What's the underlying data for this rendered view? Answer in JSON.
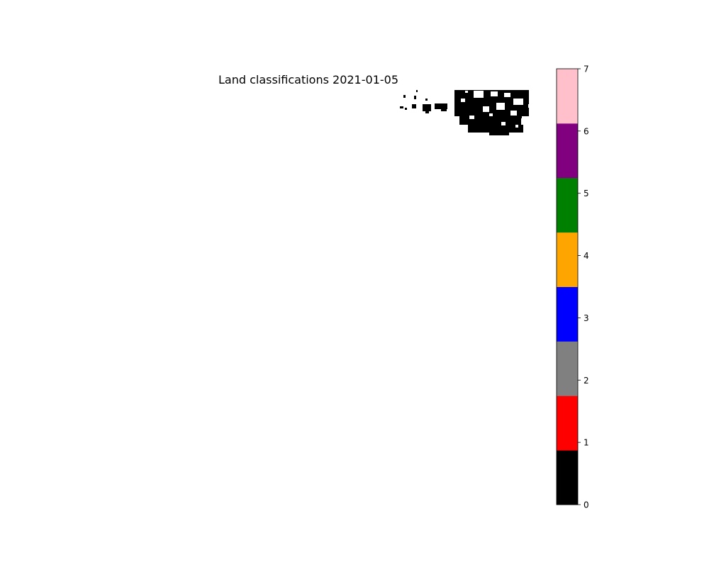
{
  "chart_data": {
    "type": "heatmap",
    "title": "Land classifications 2021-01-05",
    "xlabel": "",
    "ylabel": "",
    "axes_visible": false,
    "colorbar": {
      "orientation": "vertical",
      "placement": "right",
      "range": [
        0,
        7
      ],
      "ticks": [
        "0",
        "1",
        "2",
        "3",
        "4",
        "5",
        "6",
        "7"
      ],
      "classes": [
        {
          "value": 0,
          "color": "#000000"
        },
        {
          "value": 1,
          "color": "#ff0000"
        },
        {
          "value": 2,
          "color": "#808080"
        },
        {
          "value": 3,
          "color": "#0000ff"
        },
        {
          "value": 4,
          "color": "#ffa500"
        },
        {
          "value": 5,
          "color": "#008000"
        },
        {
          "value": 6,
          "color": "#800080"
        },
        {
          "value": 7,
          "color": "#ffc0cb"
        }
      ]
    },
    "visible_classes": [
      0
    ],
    "nodata_color": "#ffffff"
  }
}
